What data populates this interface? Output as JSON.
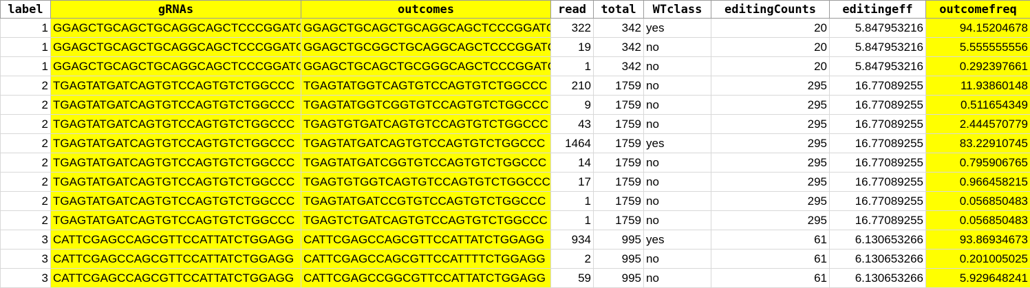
{
  "table": {
    "headers": [
      "label",
      "gRNAs",
      "outcomes",
      "read",
      "total",
      "WTclass",
      "editingCounts",
      "editingeff",
      "outcomefreq"
    ],
    "rows": [
      [
        "1",
        "GGAGCTGCAGCTGCAGGCAGCTCCCGGATC",
        "GGAGCTGCAGCTGCAGGCAGCTCCCGGATC",
        "322",
        "342",
        "yes",
        "20",
        "5.847953216",
        "94.15204678"
      ],
      [
        "1",
        "GGAGCTGCAGCTGCAGGCAGCTCCCGGATC",
        "GGAGCTGCGGCTGCAGGCAGCTCCCGGATC",
        "19",
        "342",
        "no",
        "20",
        "5.847953216",
        "5.555555556"
      ],
      [
        "1",
        "GGAGCTGCAGCTGCAGGCAGCTCCCGGATC",
        "GGAGCTGCAGCTGCGGGCAGCTCCCGGATC",
        "1",
        "342",
        "no",
        "20",
        "5.847953216",
        "0.292397661"
      ],
      [
        "2",
        "TGAGTATGATCAGTGTCCAGTGTCTGGCCC",
        "TGAGTATGGTCAGTGTCCAGTGTCTGGCCC",
        "210",
        "1759",
        "no",
        "295",
        "16.77089255",
        "11.93860148"
      ],
      [
        "2",
        "TGAGTATGATCAGTGTCCAGTGTCTGGCCC",
        "TGAGTATGGTCGGTGTCCAGTGTCTGGCCC",
        "9",
        "1759",
        "no",
        "295",
        "16.77089255",
        "0.511654349"
      ],
      [
        "2",
        "TGAGTATGATCAGTGTCCAGTGTCTGGCCC",
        "TGAGTGTGATCAGTGTCCAGTGTCTGGCCC",
        "43",
        "1759",
        "no",
        "295",
        "16.77089255",
        "2.444570779"
      ],
      [
        "2",
        "TGAGTATGATCAGTGTCCAGTGTCTGGCCC",
        "TGAGTATGATCAGTGTCCAGTGTCTGGCCC",
        "1464",
        "1759",
        "yes",
        "295",
        "16.77089255",
        "83.22910745"
      ],
      [
        "2",
        "TGAGTATGATCAGTGTCCAGTGTCTGGCCC",
        "TGAGTATGATCGGTGTCCAGTGTCTGGCCC",
        "14",
        "1759",
        "no",
        "295",
        "16.77089255",
        "0.795906765"
      ],
      [
        "2",
        "TGAGTATGATCAGTGTCCAGTGTCTGGCCC",
        "TGAGTGTGGTCAGTGTCCAGTGTCTGGCCC",
        "17",
        "1759",
        "no",
        "295",
        "16.77089255",
        "0.966458215"
      ],
      [
        "2",
        "TGAGTATGATCAGTGTCCAGTGTCTGGCCC",
        "TGAGTATGATCCGTGTCCAGTGTCTGGCCC",
        "1",
        "1759",
        "no",
        "295",
        "16.77089255",
        "0.056850483"
      ],
      [
        "2",
        "TGAGTATGATCAGTGTCCAGTGTCTGGCCC",
        "TGAGTCTGATCAGTGTCCAGTGTCTGGCCC",
        "1",
        "1759",
        "no",
        "295",
        "16.77089255",
        "0.056850483"
      ],
      [
        "3",
        "CATTCGAGCCAGCGTTCCATTATCTGGAGG",
        "CATTCGAGCCAGCGTTCCATTATCTGGAGG",
        "934",
        "995",
        "yes",
        "61",
        "6.130653266",
        "93.86934673"
      ],
      [
        "3",
        "CATTCGAGCCAGCGTTCCATTATCTGGAGG",
        "CATTCGAGCCAGCGTTCCATTTTCTGGAGG",
        "2",
        "995",
        "no",
        "61",
        "6.130653266",
        "0.201005025"
      ],
      [
        "3",
        "CATTCGAGCCAGCGTTCCATTATCTGGAGG",
        "CATTCGAGCCGGCGTTCCATTATCTGGAGG",
        "59",
        "995",
        "no",
        "61",
        "6.130653266",
        "5.929648241"
      ]
    ]
  }
}
